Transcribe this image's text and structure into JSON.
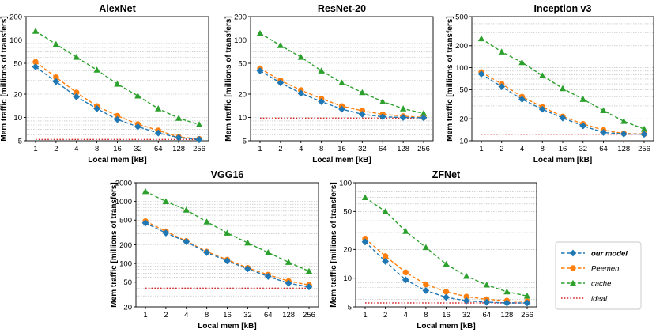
{
  "chart_data": [
    {
      "type": "line",
      "title": "AlexNet",
      "xlabel": "Local mem [kB]",
      "ylabel": "Mem traffic [millions of transfers]",
      "yscale": "log",
      "ylim": [
        5,
        200
      ],
      "yticks": [
        5,
        10,
        20,
        50,
        100,
        200
      ],
      "categories": [
        "1",
        "2",
        "4",
        "8",
        "16",
        "32",
        "64",
        "128",
        "256"
      ],
      "series": [
        {
          "name": "our model",
          "values": [
            45,
            29,
            18.5,
            13,
            9.4,
            7.6,
            6.3,
            5.5,
            5.2
          ]
        },
        {
          "name": "Peemen",
          "values": [
            52,
            33,
            21,
            14,
            10.5,
            8.2,
            6.8,
            5.6,
            5.3
          ]
        },
        {
          "name": "cache",
          "values": [
            130,
            88,
            60,
            41,
            27,
            19,
            13,
            9.8,
            8.1
          ]
        },
        {
          "name": "ideal",
          "values": [
            5.2,
            5.2,
            5.2,
            5.2,
            5.2,
            5.2,
            5.2,
            5.2,
            5.2
          ]
        }
      ]
    },
    {
      "type": "line",
      "title": "ResNet-20",
      "xlabel": "Local mem [kB]",
      "ylabel": "Mem traffic [millions of transfers]",
      "yscale": "log",
      "ylim": [
        5,
        200
      ],
      "yticks": [
        5,
        10,
        20,
        50,
        100,
        200
      ],
      "categories": [
        "1",
        "2",
        "4",
        "8",
        "16",
        "32",
        "64",
        "128",
        "256"
      ],
      "series": [
        {
          "name": "our model",
          "values": [
            40,
            28,
            20.5,
            16,
            12.8,
            11,
            10.2,
            10,
            9.9
          ]
        },
        {
          "name": "Peemen",
          "values": [
            43,
            30,
            22.5,
            17.5,
            14,
            12.2,
            11,
            10.4,
            10
          ]
        },
        {
          "name": "cache",
          "values": [
            122,
            85,
            60,
            40,
            28,
            21,
            16,
            13,
            11.3
          ]
        },
        {
          "name": "ideal",
          "values": [
            9.8,
            9.8,
            9.8,
            9.8,
            9.8,
            9.8,
            9.8,
            9.8,
            9.8
          ]
        }
      ]
    },
    {
      "type": "line",
      "title": "Inception v3",
      "xlabel": "Local mem [kB]",
      "ylabel": "Mem traffic [millions of transfers]",
      "yscale": "log",
      "ylim": [
        10,
        500
      ],
      "yticks": [
        10,
        20,
        50,
        100,
        200,
        500
      ],
      "categories": [
        "1",
        "2",
        "4",
        "8",
        "16",
        "32",
        "64",
        "128",
        "256"
      ],
      "series": [
        {
          "name": "our model",
          "values": [
            82,
            55,
            37,
            27,
            20.5,
            16,
            13,
            12.4,
            12.3
          ]
        },
        {
          "name": "Peemen",
          "values": [
            87,
            60,
            40,
            29,
            21.5,
            17,
            14,
            12.6,
            12.4
          ]
        },
        {
          "name": "cache",
          "values": [
            250,
            165,
            118,
            78,
            52,
            37,
            26,
            18.5,
            14.5
          ]
        },
        {
          "name": "ideal",
          "values": [
            12.3,
            12.3,
            12.3,
            12.3,
            12.3,
            12.3,
            12.3,
            12.3,
            12.3
          ]
        }
      ]
    },
    {
      "type": "line",
      "title": "VGG16",
      "xlabel": "Local mem [kB]",
      "ylabel": "Mem traffic [millions of transfers]",
      "yscale": "log",
      "ylim": [
        20,
        2000
      ],
      "yticks": [
        20,
        50,
        100,
        200,
        500,
        1000,
        2000
      ],
      "categories": [
        "1",
        "2",
        "4",
        "8",
        "16",
        "32",
        "64",
        "128",
        "256"
      ],
      "series": [
        {
          "name": "our model",
          "values": [
            450,
            310,
            225,
            150,
            110,
            82,
            62,
            48,
            42
          ]
        },
        {
          "name": "Peemen",
          "values": [
            480,
            330,
            230,
            155,
            115,
            85,
            66,
            52,
            45
          ]
        },
        {
          "name": "cache",
          "values": [
            1450,
            1000,
            730,
            470,
            310,
            215,
            150,
            105,
            75
          ]
        },
        {
          "name": "ideal",
          "values": [
            40,
            40,
            40,
            40,
            40,
            40,
            40,
            40,
            40
          ]
        }
      ]
    },
    {
      "type": "line",
      "title": "ZFNet",
      "xlabel": "Local mem [kB]",
      "ylabel": "Mem traffic [millions of transfers]",
      "yscale": "log",
      "ylim": [
        5,
        100
      ],
      "yticks": [
        5,
        10,
        20,
        50,
        100
      ],
      "categories": [
        "1",
        "2",
        "4",
        "8",
        "16",
        "32",
        "64",
        "128",
        "256"
      ],
      "series": [
        {
          "name": "our model",
          "values": [
            24,
            15,
            9.6,
            7.4,
            6.3,
            5.8,
            5.6,
            5.5,
            5.5
          ]
        },
        {
          "name": "Peemen",
          "values": [
            26,
            17,
            11.5,
            8.6,
            7.2,
            6.4,
            6,
            5.8,
            5.7
          ]
        },
        {
          "name": "cache",
          "values": [
            70,
            50,
            31,
            21,
            14,
            10.5,
            8.5,
            7.2,
            6.5
          ]
        },
        {
          "name": "ideal",
          "values": [
            5.5,
            5.5,
            5.5,
            5.5,
            5.5,
            5.5,
            5.5,
            5.5,
            5.5
          ]
        }
      ]
    }
  ],
  "legend": {
    "placement": "right",
    "items": [
      {
        "label": "our model",
        "color": "#1f77b4",
        "marker": "diamond",
        "line": "dashed"
      },
      {
        "label": "Peemen",
        "color": "#ff7f0e",
        "marker": "circle",
        "line": "dashed"
      },
      {
        "label": "cache",
        "color": "#2ca02c",
        "marker": "triangle",
        "line": "dashed"
      },
      {
        "label": "ideal",
        "color": "#d62728",
        "marker": "none",
        "line": "dotted"
      }
    ]
  }
}
